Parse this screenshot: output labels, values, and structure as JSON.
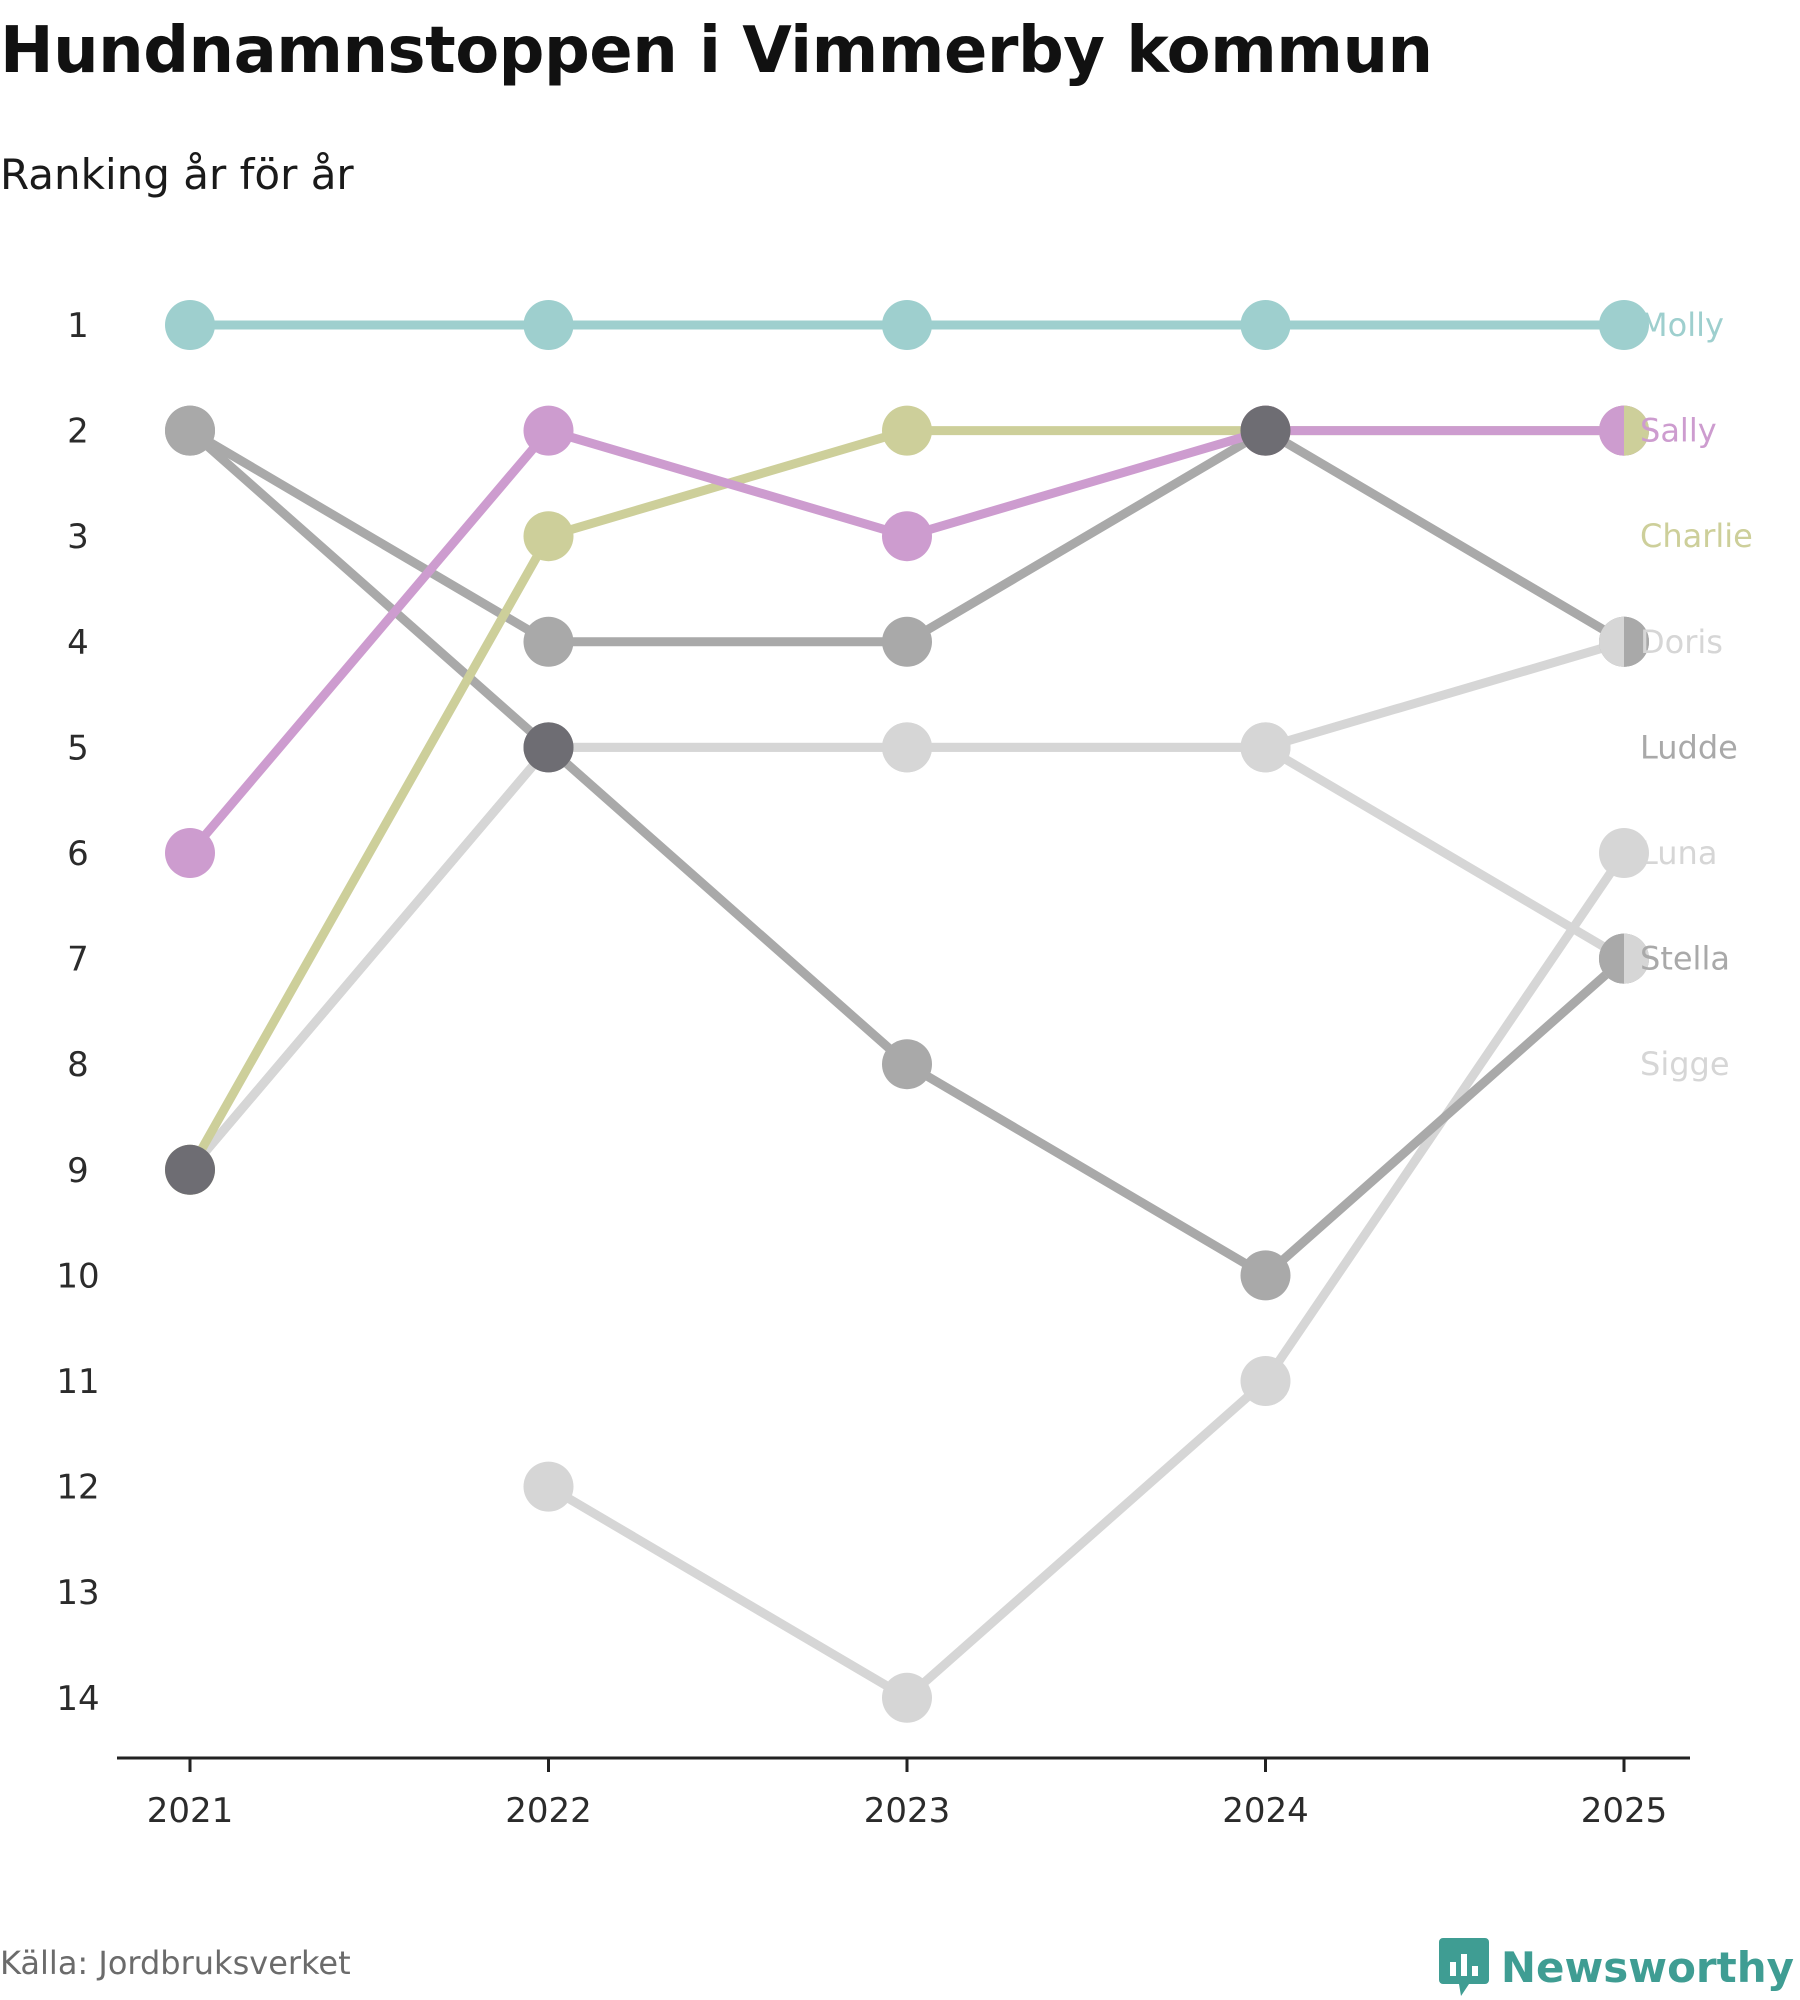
{
  "title": "Hundnamnstoppen i Vimmerby kommun",
  "subtitle": "Ranking år för år",
  "source": "Källa: Jordbruksverket",
  "brand": {
    "name": "Newsworthy",
    "icon": "newsworthy-logo-icon",
    "color": "#3f9d93"
  },
  "chart_data": {
    "type": "line",
    "title": "Hundnamnstoppen i Vimmerby kommun",
    "subtitle": "Ranking år för år",
    "x": [
      "2021",
      "2022",
      "2023",
      "2024",
      "2025"
    ],
    "y_ticks": [
      "1",
      "2",
      "3",
      "4",
      "5",
      "6",
      "7",
      "8",
      "9",
      "10",
      "11",
      "12",
      "13",
      "14"
    ],
    "ylim": [
      1,
      14
    ],
    "y_inverted": true,
    "xlabel": "",
    "ylabel": "",
    "grid": false,
    "series": [
      {
        "name": "Molly",
        "color": "#9ecfce",
        "values": [
          1,
          1,
          1,
          1,
          1
        ]
      },
      {
        "name": "Sally",
        "color": "#cd9ccf",
        "values": [
          6,
          2,
          3,
          2,
          2
        ]
      },
      {
        "name": "Charlie",
        "color": "#cdcf9a",
        "values": [
          9,
          3,
          2,
          2,
          2
        ]
      },
      {
        "name": "Doris",
        "color": "#d6d6d6",
        "values": [
          9,
          5,
          5,
          5,
          4
        ]
      },
      {
        "name": "Ludde",
        "color": "#a9a9a9",
        "values": [
          2,
          4,
          4,
          2,
          4
        ]
      },
      {
        "name": "Luna",
        "color": "#d6d6d6",
        "values": [
          null,
          12,
          14,
          11,
          6
        ]
      },
      {
        "name": "Stella",
        "color": "#a9a9a9",
        "values": [
          2,
          5,
          8,
          10,
          7
        ]
      },
      {
        "name": "Sigge",
        "color": "#d6d6d6",
        "values": [
          9,
          5,
          5,
          5,
          7
        ]
      }
    ],
    "highlighted_dots": [
      {
        "x": "2021",
        "y": 9,
        "color": "#6e6d73"
      },
      {
        "x": "2022",
        "y": 5,
        "color": "#6e6d73"
      },
      {
        "x": "2024",
        "y": 2,
        "color": "#6e6d73"
      }
    ],
    "end_labels": [
      "Molly",
      "Sally",
      "Charlie",
      "Doris",
      "Ludde",
      "Luna",
      "Stella",
      "Sigge"
    ]
  }
}
